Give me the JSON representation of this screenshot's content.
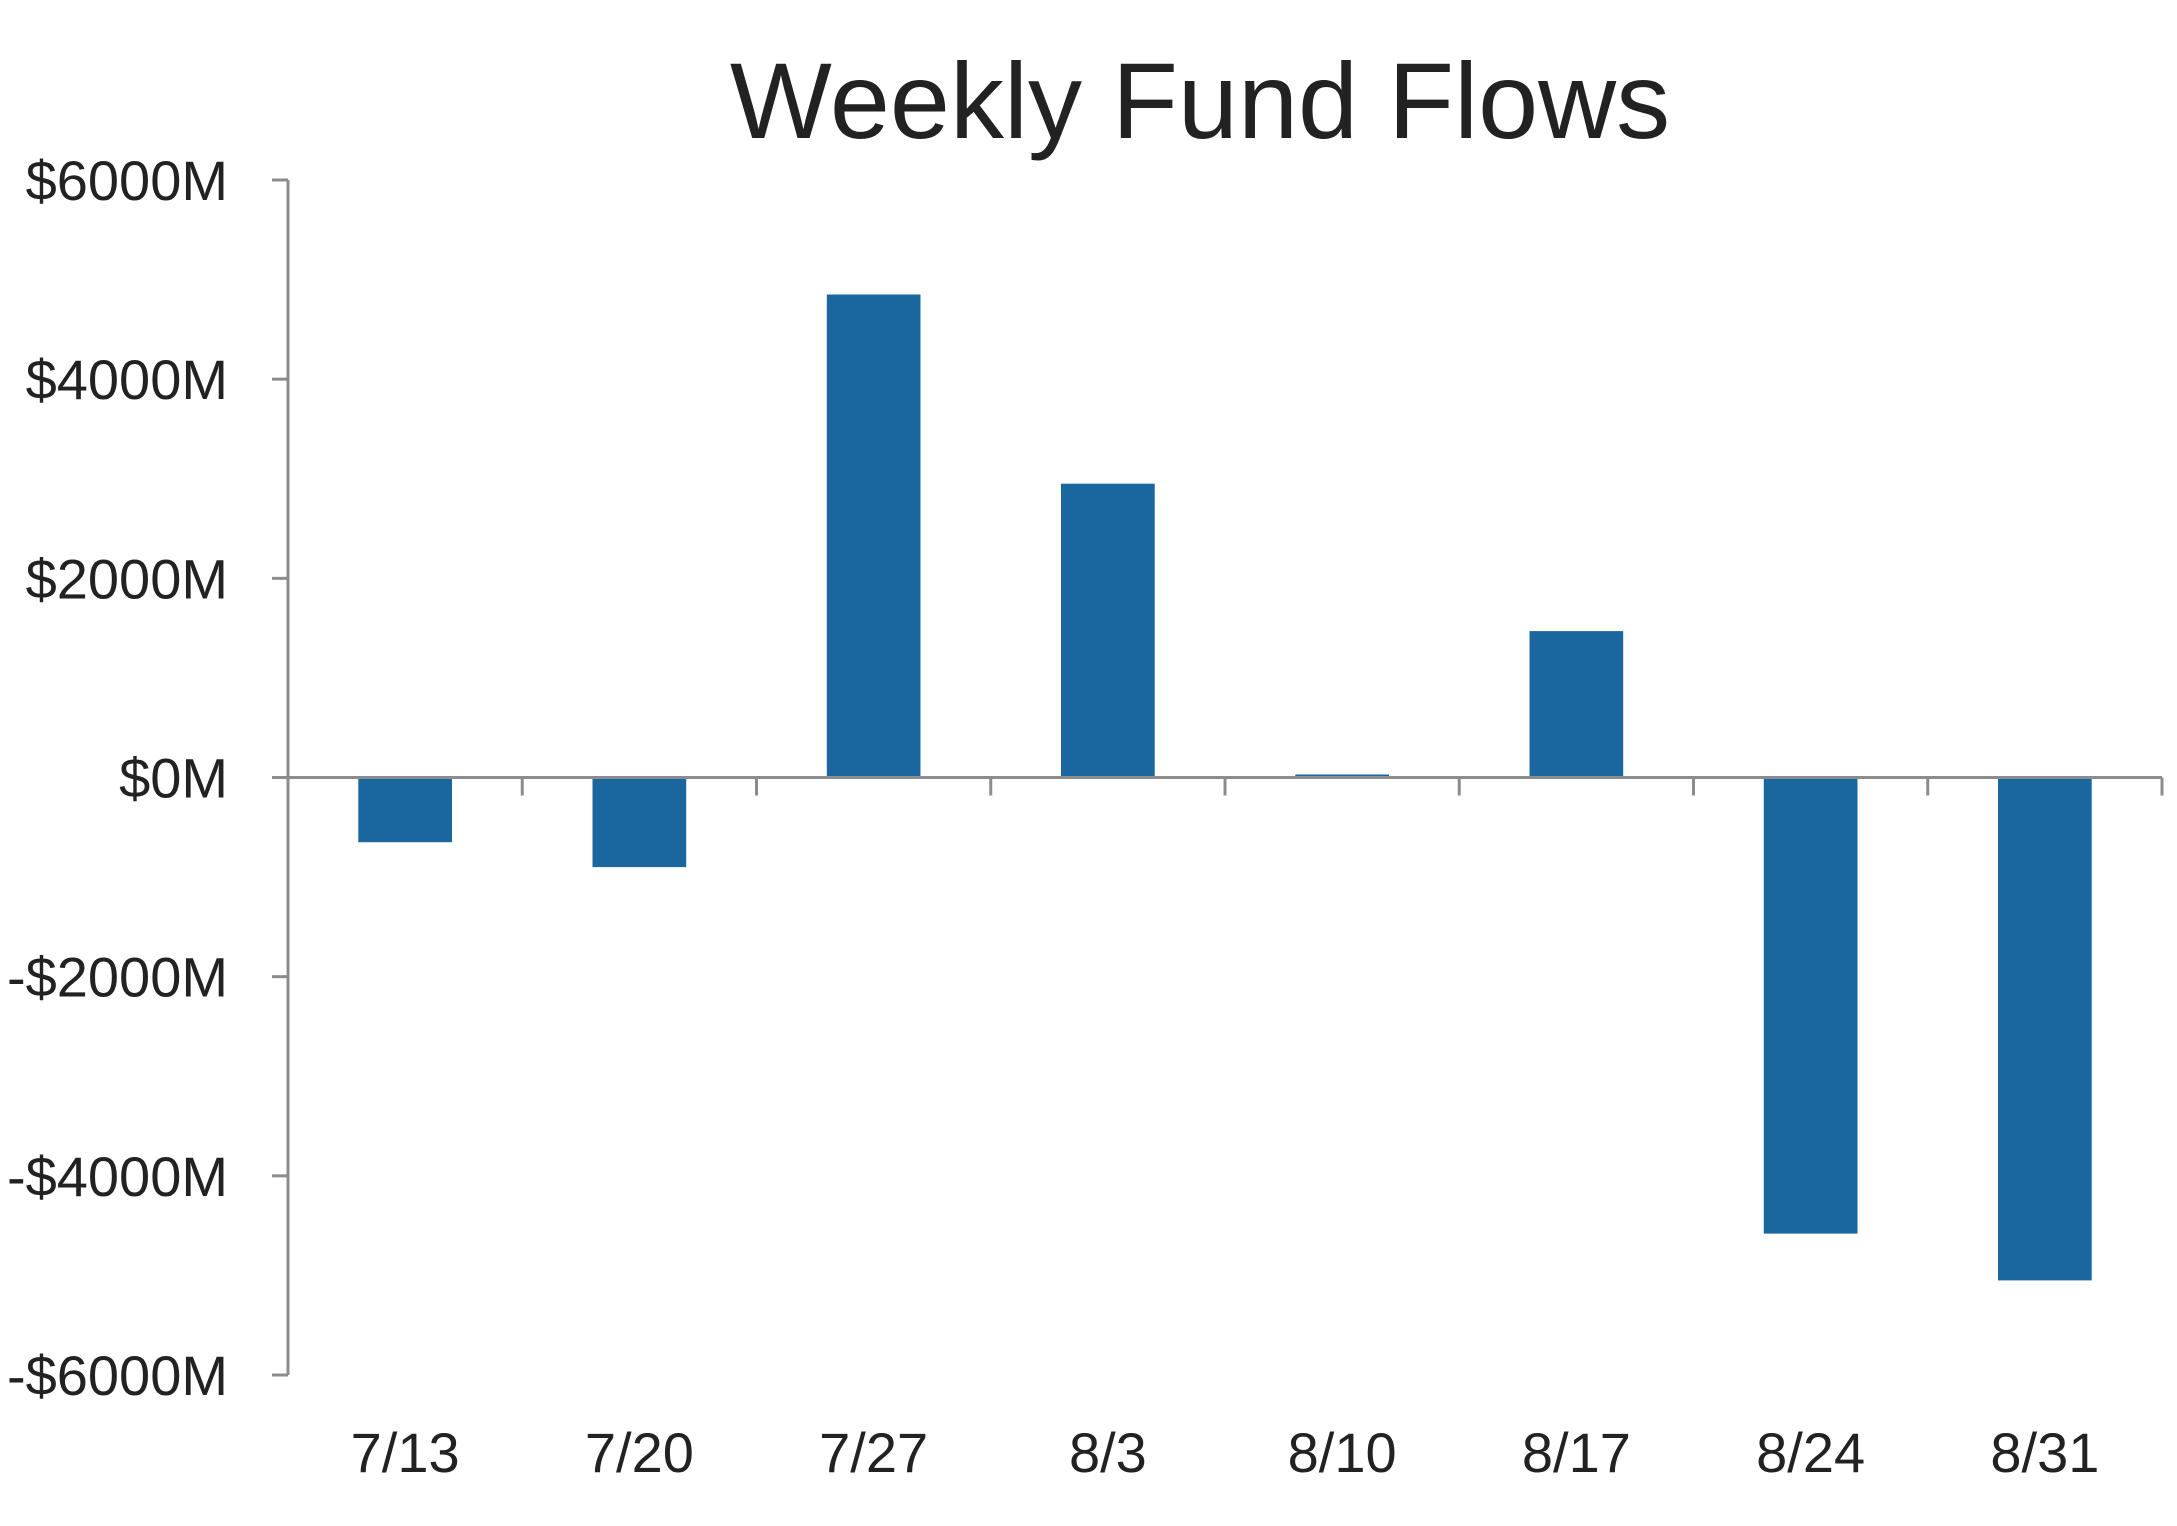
{
  "chart_data": {
    "type": "bar",
    "title": "Weekly Fund Flows",
    "xlabel": "",
    "ylabel": "",
    "categories": [
      "7/13",
      "7/20",
      "7/27",
      "8/3",
      "8/10",
      "8/17",
      "8/24",
      "8/31"
    ],
    "values": [
      -650,
      -900,
      4850,
      2950,
      30,
      1470,
      -4580,
      -5050
    ],
    "ylim": [
      -6000,
      6000
    ],
    "yticks": [
      6000,
      4000,
      2000,
      0,
      -2000,
      -4000,
      -6000
    ],
    "ytick_labels": [
      "$6000M",
      "$4000M",
      "$2000M",
      "$0M",
      "-$2000M",
      "-$4000M",
      "-$6000M"
    ],
    "grid": false,
    "legend": "none",
    "bar_color": "#1a67a0",
    "axis_color": "#8c8c8c",
    "text_color": "#222222"
  }
}
